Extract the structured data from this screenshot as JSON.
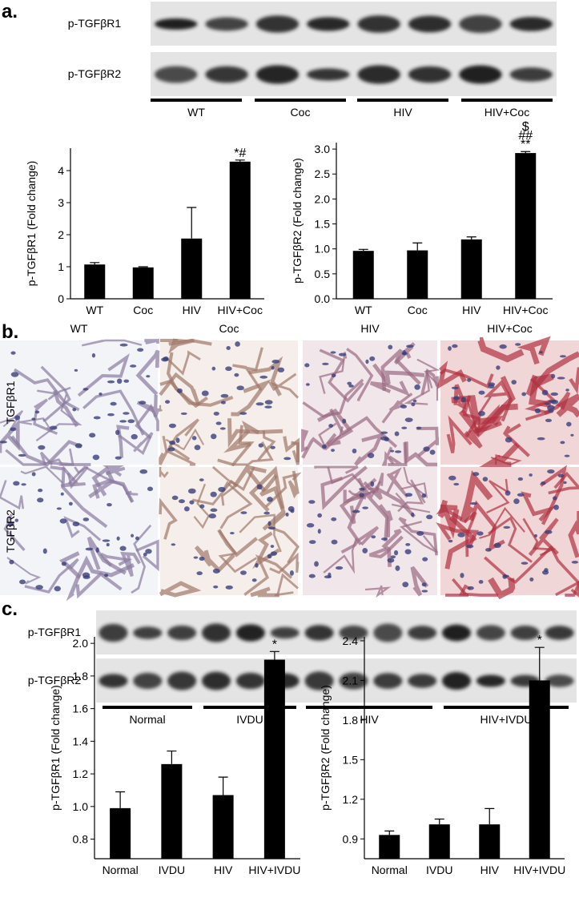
{
  "panels": {
    "a": "a.",
    "b": "b.",
    "c": "c."
  },
  "blots_a": {
    "rows": [
      "p-TGFβR1",
      "p-TGFβR2"
    ],
    "groups": [
      "WT",
      "Coc",
      "HIV",
      "HIV+Coc"
    ]
  },
  "histology": {
    "columns": [
      "WT",
      "Coc",
      "HIV",
      "HIV+Coc"
    ],
    "rows": [
      "TGFβR1",
      "TGFβR2"
    ]
  },
  "blots_c": {
    "rows": [
      "p-TGFβR1",
      "p-TGFβR2"
    ],
    "groups": [
      "Normal",
      "IVDU",
      "HIV",
      "HIV+IVDU"
    ]
  },
  "chart_data": [
    {
      "type": "bar",
      "ylabel": "p-TGFβR1 (Fold change)",
      "categories": [
        "WT",
        "Coc",
        "HIV",
        "HIV+Coc"
      ],
      "values": [
        1.07,
        0.98,
        1.88,
        4.28
      ],
      "errors": [
        0.06,
        0.02,
        0.97,
        0.05
      ],
      "color": "#000000",
      "ylim": [
        0,
        4.7
      ],
      "yticks": [
        0,
        1,
        2,
        3,
        4
      ],
      "annotations": [
        {
          "category": "HIV+Coc",
          "text": [
            "*#"
          ]
        }
      ]
    },
    {
      "type": "bar",
      "ylabel": "p-TGFβR2 (Fold change)",
      "categories": [
        "WT",
        "Coc",
        "HIV",
        "HIV+Coc"
      ],
      "values": [
        0.96,
        0.97,
        1.19,
        2.92
      ],
      "errors": [
        0.03,
        0.15,
        0.05,
        0.03
      ],
      "color": "#000000",
      "ylim": [
        0,
        3.13
      ],
      "yticks": [
        {
          "value": 0,
          "label": "0.0"
        },
        0.5,
        {
          "value": 1,
          "label": "1.0"
        },
        1.5,
        {
          "value": 2,
          "label": "2.0"
        },
        2.5,
        {
          "value": 3,
          "label": "3.0"
        }
      ],
      "annotations": [
        {
          "category": "HIV+Coc",
          "text": [
            "$",
            "##",
            "**"
          ]
        }
      ]
    },
    {
      "type": "bar",
      "ylabel": "p-TGFβR1 (Fold change)",
      "categories": [
        "Normal",
        "IVDU",
        "HIV",
        "HIV+IVDU"
      ],
      "values": [
        0.99,
        1.26,
        1.07,
        1.9
      ],
      "errors": [
        0.1,
        0.08,
        0.11,
        0.05
      ],
      "color": "#000000",
      "ylim": [
        0.68,
        2.04
      ],
      "yticks": [
        0.8,
        {
          "value": 1,
          "label": "1.0"
        },
        1.2,
        1.4,
        1.6,
        1.8,
        {
          "value": 2,
          "label": "2.0"
        }
      ],
      "annotations": [
        {
          "category": "HIV+IVDU",
          "text": [
            "*"
          ]
        }
      ]
    },
    {
      "type": "bar",
      "ylabel": "p-TGFβR2 (Fold change)",
      "categories": [
        "Normal",
        "IVDU",
        "HIV",
        "HIV+IVDU"
      ],
      "values": [
        0.93,
        1.01,
        1.01,
        2.1
      ],
      "errors": [
        0.03,
        0.04,
        0.12,
        0.25
      ],
      "color": "#000000",
      "ylim": [
        0.75,
        2.43
      ],
      "yticks": [
        0.9,
        1.2,
        1.5,
        1.8,
        2.1,
        2.4
      ],
      "annotations": [
        {
          "category": "HIV+IVDU",
          "text": [
            "*"
          ]
        }
      ]
    }
  ]
}
